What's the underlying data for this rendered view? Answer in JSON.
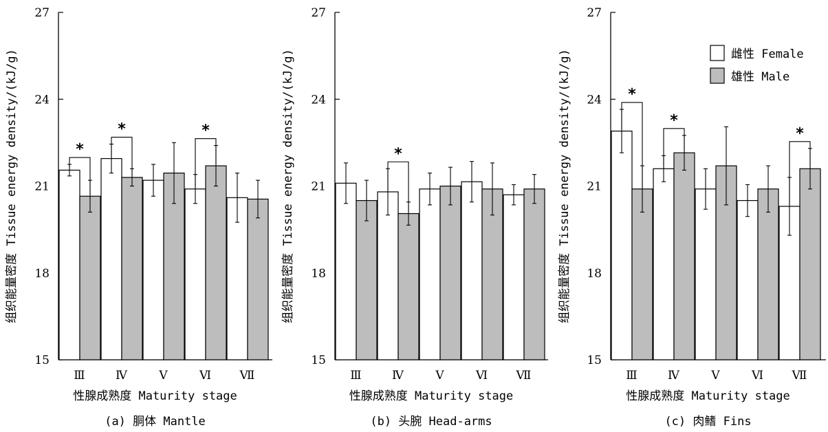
{
  "chart_data": [
    {
      "type": "bar",
      "caption": "(a) 胴体 Mantle",
      "xlabel": "性腺成熟度 Maturity stage",
      "ylabel": "组织能量密度 Tissue energy density/(kJ/g)",
      "ylim": [
        15,
        27
      ],
      "yticks": [
        "15",
        "18",
        "21",
        "24",
        "27"
      ],
      "categories": [
        "Ⅲ",
        "Ⅳ",
        "Ⅴ",
        "Ⅵ",
        "Ⅶ"
      ],
      "series": [
        {
          "name": "雌性 Female",
          "color": "#ffffff",
          "values": [
            21.55,
            21.95,
            21.2,
            20.9,
            20.6
          ],
          "errors": [
            0.2,
            0.5,
            0.55,
            0.5,
            0.85
          ]
        },
        {
          "name": "雄性 Male",
          "color": "#bdbdbd",
          "values": [
            20.65,
            21.3,
            21.45,
            21.7,
            20.55
          ],
          "errors": [
            0.55,
            0.3,
            1.05,
            0.7,
            0.65
          ]
        }
      ],
      "significance": [
        {
          "category": "Ⅲ",
          "label": "*"
        },
        {
          "category": "Ⅳ",
          "label": "*"
        },
        {
          "category": "Ⅵ",
          "label": "*"
        }
      ]
    },
    {
      "type": "bar",
      "caption": "(b) 头腕 Head-arms",
      "xlabel": "性腺成熟度 Maturity stage",
      "ylabel": "组织能量密度 Tissue energy density/(kJ/g)",
      "ylim": [
        15,
        27
      ],
      "yticks": [
        "15",
        "18",
        "21",
        "24",
        "27"
      ],
      "categories": [
        "Ⅲ",
        "Ⅳ",
        "Ⅴ",
        "Ⅵ",
        "Ⅶ"
      ],
      "series": [
        {
          "name": "雌性 Female",
          "color": "#ffffff",
          "values": [
            21.1,
            20.8,
            20.9,
            21.15,
            20.7
          ],
          "errors": [
            0.7,
            0.8,
            0.55,
            0.7,
            0.35
          ]
        },
        {
          "name": "雄性 Male",
          "color": "#bdbdbd",
          "values": [
            20.5,
            20.05,
            21.0,
            20.9,
            20.9
          ],
          "errors": [
            0.7,
            0.4,
            0.65,
            0.9,
            0.5
          ]
        }
      ],
      "significance": [
        {
          "category": "Ⅳ",
          "label": "*"
        }
      ]
    },
    {
      "type": "bar",
      "caption": "(c) 肉鳍 Fins",
      "xlabel": "性腺成熟度 Maturity stage",
      "ylabel": "组织能量密度 Tissue energy density/(kJ/g)",
      "ylim": [
        15,
        27
      ],
      "yticks": [
        "15",
        "18",
        "21",
        "24",
        "27"
      ],
      "categories": [
        "Ⅲ",
        "Ⅳ",
        "Ⅴ",
        "Ⅵ",
        "Ⅶ"
      ],
      "legend": "top-right",
      "series": [
        {
          "name": "雌性 Female",
          "color": "#ffffff",
          "values": [
            22.9,
            21.6,
            20.9,
            20.5,
            20.3
          ],
          "errors": [
            0.75,
            0.45,
            0.7,
            0.55,
            1.0
          ]
        },
        {
          "name": "雄性 Male",
          "color": "#bdbdbd",
          "values": [
            20.9,
            22.15,
            21.7,
            20.9,
            21.6
          ],
          "errors": [
            0.8,
            0.6,
            1.35,
            0.8,
            0.7
          ]
        }
      ],
      "significance": [
        {
          "category": "Ⅲ",
          "label": "*"
        },
        {
          "category": "Ⅳ",
          "label": "*"
        },
        {
          "category": "Ⅶ",
          "label": "*"
        }
      ]
    }
  ]
}
